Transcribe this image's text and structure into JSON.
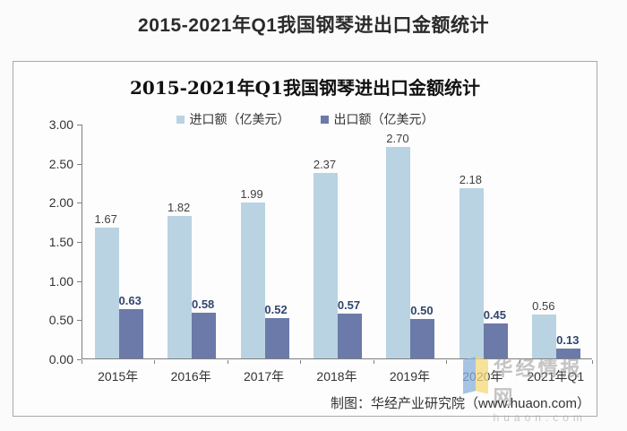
{
  "page": {
    "title": "2015-2021年Q1我国钢琴进出口金额统计"
  },
  "chart": {
    "inner_title": "2015-2021年Q1我国钢琴进出口金额统计",
    "footer_credit": "制图：华经产业研究院（www.huaon.com）",
    "watermark": {
      "name": "华经情报网",
      "domain": "huaon.com"
    }
  },
  "chart_data": {
    "type": "bar",
    "title": "2015-2021年Q1我国钢琴进出口金额统计",
    "categories": [
      "2015年",
      "2016年",
      "2017年",
      "2018年",
      "2019年",
      "2020年",
      "2021年Q1"
    ],
    "series": [
      {
        "name": "进口额（亿美元）",
        "values": [
          1.67,
          1.82,
          1.99,
          2.37,
          2.7,
          2.18,
          0.56
        ],
        "color": "#b9d3e2",
        "label_color": "#404040",
        "label_weight": "400"
      },
      {
        "name": "出口额（亿美元）",
        "values": [
          0.63,
          0.58,
          0.52,
          0.57,
          0.5,
          0.45,
          0.13
        ],
        "color": "#6b7aa8",
        "label_color": "#31466e",
        "label_weight": "700"
      }
    ],
    "ylim": [
      0,
      3.0
    ],
    "yticks": [
      "3.00",
      "2.50",
      "2.00",
      "1.50",
      "1.00",
      "0.50",
      "0.00"
    ],
    "grid": false,
    "legend_position": "top-center",
    "value_labels": true
  }
}
